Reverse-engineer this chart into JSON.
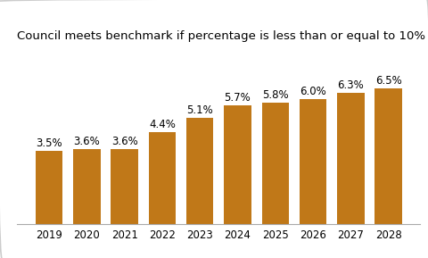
{
  "title": "Council meets benchmark if percentage is less than or equal to 10%",
  "categories": [
    "2019",
    "2020",
    "2021",
    "2022",
    "2023",
    "2024",
    "2025",
    "2026",
    "2027",
    "2028"
  ],
  "values": [
    3.5,
    3.6,
    3.6,
    4.4,
    5.1,
    5.7,
    5.8,
    6.0,
    6.3,
    6.5
  ],
  "labels": [
    "3.5%",
    "3.6%",
    "3.6%",
    "4.4%",
    "5.1%",
    "5.7%",
    "5.8%",
    "6.0%",
    "6.3%",
    "6.5%"
  ],
  "bar_color": "#C07818",
  "background_color": "#ffffff",
  "border_color": "#cccccc",
  "title_fontsize": 9.5,
  "label_fontsize": 8.5,
  "tick_fontsize": 8.5,
  "ylim": [
    0,
    8.5
  ],
  "bar_width": 0.72
}
